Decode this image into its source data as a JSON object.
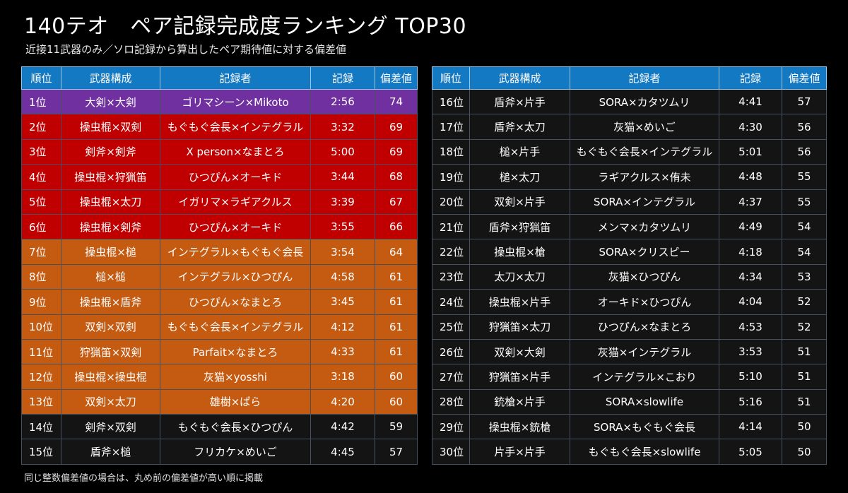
{
  "title": "140テオ　ペア記録完成度ランキング TOP30",
  "subtitle": "近接11武器のみ／ソロ記録から算出したペア期待値に対する偏差値",
  "footnote": "同じ整数偏差値の場合は、丸め前の偏差値が高い順に掲載",
  "headers": {
    "rank": "順位",
    "weapons": "武器構成",
    "recorders": "記録者",
    "time": "記録",
    "score": "偏差値"
  },
  "colors": {
    "header": "#1479c3",
    "purple": "#7030a0",
    "red": "#c00000",
    "orange": "#c55a11",
    "black": "#141414"
  },
  "rows": [
    {
      "rank": "1位",
      "weapons": "大剣×大剣",
      "recorders": "ゴリマシーン×Mikoto",
      "time": "2:56",
      "score": "74",
      "tier": "purple"
    },
    {
      "rank": "2位",
      "weapons": "操虫棍×双剣",
      "recorders": "もぐもぐ会長×インテグラル",
      "time": "3:32",
      "score": "69",
      "tier": "red"
    },
    {
      "rank": "3位",
      "weapons": "剣斧×剣斧",
      "recorders": "X person×なまとろ",
      "time": "5:00",
      "score": "69",
      "tier": "red"
    },
    {
      "rank": "4位",
      "weapons": "操虫棍×狩猟笛",
      "recorders": "ひつぴん×オーキド",
      "time": "3:44",
      "score": "68",
      "tier": "red"
    },
    {
      "rank": "5位",
      "weapons": "操虫棍×太刀",
      "recorders": "イガリマ×ラギアクルス",
      "time": "3:39",
      "score": "67",
      "tier": "red"
    },
    {
      "rank": "6位",
      "weapons": "操虫棍×剣斧",
      "recorders": "ひつぴん×オーキド",
      "time": "3:55",
      "score": "66",
      "tier": "red"
    },
    {
      "rank": "7位",
      "weapons": "操虫棍×槌",
      "recorders": "インテグラル×もぐもぐ会長",
      "time": "3:54",
      "score": "64",
      "tier": "orange"
    },
    {
      "rank": "8位",
      "weapons": "槌×槌",
      "recorders": "インテグラル×ひつぴん",
      "time": "4:58",
      "score": "61",
      "tier": "orange"
    },
    {
      "rank": "9位",
      "weapons": "操虫棍×盾斧",
      "recorders": "ひつぴん×なまとろ",
      "time": "3:45",
      "score": "61",
      "tier": "orange"
    },
    {
      "rank": "10位",
      "weapons": "双剣×双剣",
      "recorders": "もぐもぐ会長×インテグラル",
      "time": "4:12",
      "score": "61",
      "tier": "orange"
    },
    {
      "rank": "11位",
      "weapons": "狩猟笛×双剣",
      "recorders": "Parfait×なまとろ",
      "time": "4:33",
      "score": "61",
      "tier": "orange"
    },
    {
      "rank": "12位",
      "weapons": "操虫棍×操虫棍",
      "recorders": "灰猫×yosshi",
      "time": "3:18",
      "score": "60",
      "tier": "orange"
    },
    {
      "rank": "13位",
      "weapons": "双剣×太刀",
      "recorders": "雄樹×ぱら",
      "time": "4:20",
      "score": "60",
      "tier": "orange"
    },
    {
      "rank": "14位",
      "weapons": "剣斧×双剣",
      "recorders": "もぐもぐ会長×ひつぴん",
      "time": "4:42",
      "score": "59",
      "tier": "black"
    },
    {
      "rank": "15位",
      "weapons": "盾斧×槌",
      "recorders": "フリカケ×めいご",
      "time": "4:45",
      "score": "57",
      "tier": "black"
    },
    {
      "rank": "16位",
      "weapons": "盾斧×片手",
      "recorders": "SORA×カタツムリ",
      "time": "4:41",
      "score": "57",
      "tier": "black"
    },
    {
      "rank": "17位",
      "weapons": "盾斧×太刀",
      "recorders": "灰猫×めいご",
      "time": "4:30",
      "score": "56",
      "tier": "black"
    },
    {
      "rank": "18位",
      "weapons": "槌×片手",
      "recorders": "もぐもぐ会長×インテグラル",
      "time": "5:01",
      "score": "56",
      "tier": "black"
    },
    {
      "rank": "19位",
      "weapons": "槌×太刀",
      "recorders": "ラギアクルス×侑未",
      "time": "4:48",
      "score": "55",
      "tier": "black"
    },
    {
      "rank": "20位",
      "weapons": "双剣×片手",
      "recorders": "SORA×インテグラル",
      "time": "4:37",
      "score": "55",
      "tier": "black"
    },
    {
      "rank": "21位",
      "weapons": "盾斧×狩猟笛",
      "recorders": "メンマ×カタツムリ",
      "time": "4:49",
      "score": "54",
      "tier": "black"
    },
    {
      "rank": "22位",
      "weapons": "操虫棍×槍",
      "recorders": "SORA×クリスピー",
      "time": "4:18",
      "score": "54",
      "tier": "black"
    },
    {
      "rank": "23位",
      "weapons": "太刀×太刀",
      "recorders": "灰猫×ひつぴん",
      "time": "4:34",
      "score": "53",
      "tier": "black"
    },
    {
      "rank": "24位",
      "weapons": "操虫棍×片手",
      "recorders": "オーキド×ひつぴん",
      "time": "4:04",
      "score": "52",
      "tier": "black"
    },
    {
      "rank": "25位",
      "weapons": "狩猟笛×太刀",
      "recorders": "ひつぴん×なまとろ",
      "time": "4:53",
      "score": "52",
      "tier": "black"
    },
    {
      "rank": "26位",
      "weapons": "双剣×大剣",
      "recorders": "灰猫×インテグラル",
      "time": "3:53",
      "score": "51",
      "tier": "black"
    },
    {
      "rank": "27位",
      "weapons": "狩猟笛×片手",
      "recorders": "インテグラル×こおり",
      "time": "5:10",
      "score": "51",
      "tier": "black"
    },
    {
      "rank": "28位",
      "weapons": "銃槍×片手",
      "recorders": "SORA×slowlife",
      "time": "5:16",
      "score": "51",
      "tier": "black"
    },
    {
      "rank": "29位",
      "weapons": "操虫棍×銃槍",
      "recorders": "SORA×もぐもぐ会長",
      "time": "4:14",
      "score": "50",
      "tier": "black"
    },
    {
      "rank": "30位",
      "weapons": "片手×片手",
      "recorders": "もぐもぐ会長×slowlife",
      "time": "5:05",
      "score": "50",
      "tier": "black"
    }
  ]
}
